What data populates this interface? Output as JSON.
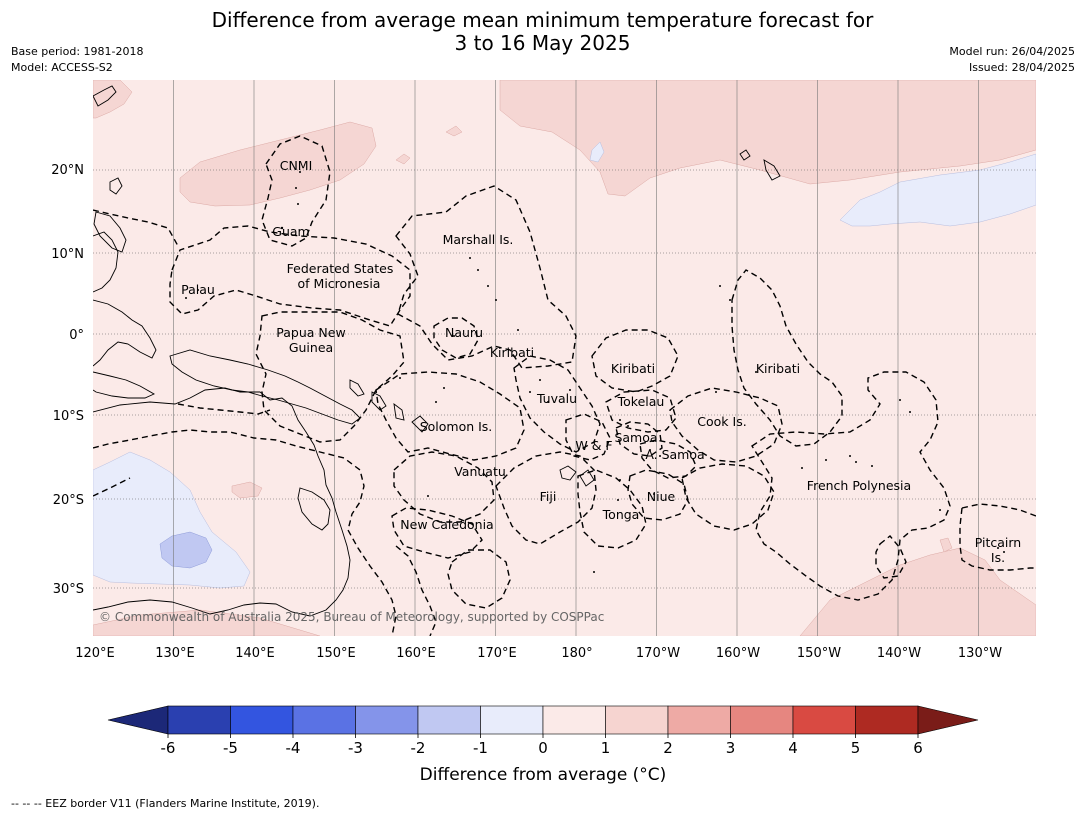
{
  "title": {
    "line1": "Difference from average mean minimum temperature forecast for",
    "line2": "3 to 16 May 2025"
  },
  "meta": {
    "base_period": "Base period: 1981-2018",
    "model": "Model: ACCESS-S2",
    "model_run": "Model run: 26/04/2025",
    "issued": "Issued: 28/04/2025"
  },
  "map": {
    "lon_ticks": [
      "120°E",
      "130°E",
      "140°E",
      "150°E",
      "160°E",
      "170°E",
      "180°",
      "170°W",
      "160°W",
      "150°W",
      "140°W",
      "130°W"
    ],
    "lat_ticks": [
      "20°N",
      "10°N",
      "0°",
      "10°S",
      "20°S",
      "30°S"
    ],
    "lon_range": [
      120,
      238
    ],
    "lat_range": [
      -36,
      31
    ],
    "background_color": "#fbeae8",
    "labels": {
      "cnmi": "CNMI",
      "guam": "Guam",
      "marshall": "Marshall Is.",
      "palau": "Palau",
      "fsm1": "Federated States",
      "fsm2": "of Micronesia",
      "png1": "Papua New",
      "png2": "Guinea",
      "nauru": "Nauru",
      "kiribati_w": "Kiribati",
      "kiribati_c": "Kiribati",
      "kiribati_e": "Kiribati",
      "tuvalu": "Tuvalu",
      "tokelau": "Tokelau",
      "cook": "Cook Is.",
      "solomon": "Solomon Is.",
      "wf": "W & F",
      "samoa": "Samoa",
      "asamoa": "A. Samoa",
      "vanuatu": "Vanuatu",
      "fiji": "Fiji",
      "niue": "Niue",
      "tonga": "Tonga",
      "newcal": "New Caledonia",
      "frpoly": "French Polynesia",
      "pitcairn1": "Pitcairn",
      "pitcairn2": "Is."
    },
    "copyright": "© Commonwealth of Australia 2025, Bureau of Meteorology, supported by COSPPac"
  },
  "colorbar": {
    "ticks": [
      "-6",
      "-5",
      "-4",
      "-3",
      "-2",
      "-1",
      "0",
      "1",
      "2",
      "3",
      "4",
      "5",
      "6"
    ],
    "colors": [
      "#2a40b0",
      "#3355e0",
      "#5a72e4",
      "#8494ea",
      "#c0c8f2",
      "#e8ecfb",
      "#fbeae8",
      "#f6d4d0",
      "#eeaaa5",
      "#e68680",
      "#d94a42",
      "#ae2a22"
    ],
    "under_color": "#1c2878",
    "over_color": "#7a1c18",
    "label": "Difference from average ($^\\circ$C)",
    "label_display": "Difference from average (°C)"
  },
  "footer": {
    "eez_note": "--  --  -- EEZ border V11 (Flanders Marine Institute, 2019)."
  }
}
